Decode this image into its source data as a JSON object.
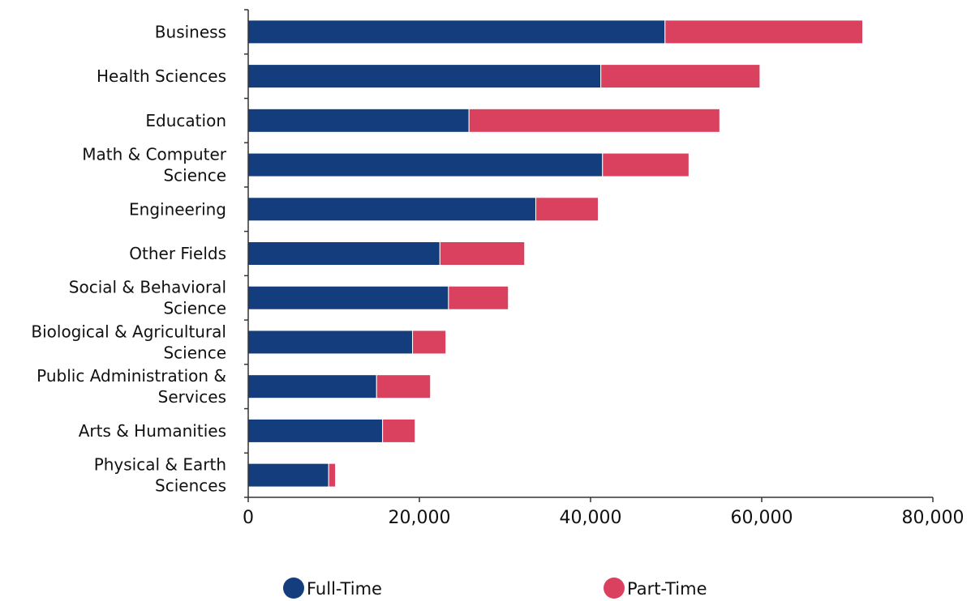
{
  "chart_data": {
    "type": "bar",
    "orientation": "horizontal",
    "stacked": true,
    "title": "",
    "xlabel": "",
    "ylabel": "",
    "categories": [
      [
        "Business"
      ],
      [
        "Health Sciences"
      ],
      [
        "Education"
      ],
      [
        "Math & Computer",
        "Science"
      ],
      [
        "Engineering"
      ],
      [
        "Other Fields"
      ],
      [
        "Social & Behavioral",
        "Science"
      ],
      [
        "Biological & Agricultural",
        "Science"
      ],
      [
        "Public Administration &",
        "Services"
      ],
      [
        "Arts & Humanities"
      ],
      [
        "Physical & Earth",
        "Sciences"
      ]
    ],
    "series": [
      {
        "name": "Full-Time",
        "color": "#133d7c",
        "values": [
          48700,
          41200,
          25800,
          41400,
          33600,
          22400,
          23400,
          19200,
          15000,
          15700,
          9400
        ]
      },
      {
        "name": "Part-Time",
        "color": "#d9415e",
        "values": [
          23100,
          18600,
          29300,
          10100,
          7300,
          9900,
          7000,
          3900,
          6300,
          3800,
          800
        ]
      }
    ],
    "xlim": [
      0,
      80000
    ],
    "xticks": [
      0,
      20000,
      40000,
      60000,
      80000
    ],
    "xtick_labels": [
      "0",
      "20,000",
      "40,000",
      "60,000",
      "80,000"
    ],
    "grid": false,
    "legend_position": "bottom"
  }
}
